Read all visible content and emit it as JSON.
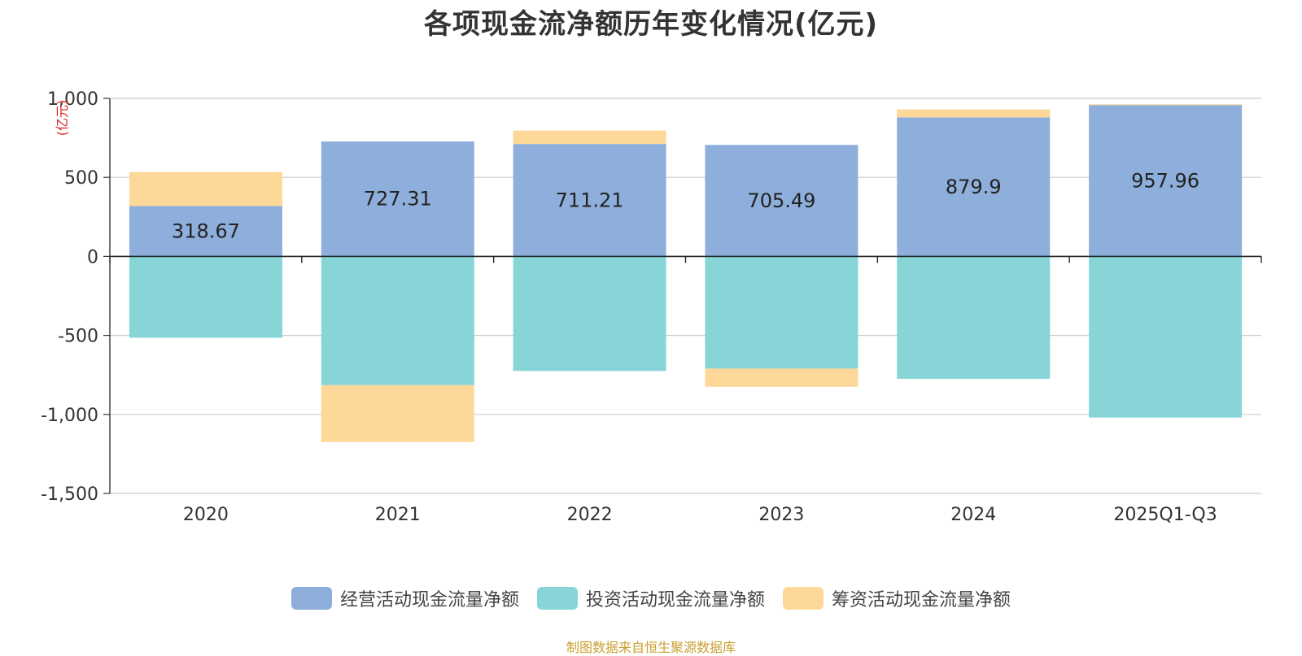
{
  "chart_data": {
    "type": "bar",
    "stacked": true,
    "title": "各项现金流净额历年变化情况(亿元)",
    "ylabel": "(亿元)",
    "categories": [
      "2020",
      "2021",
      "2022",
      "2023",
      "2024",
      "2025Q1-Q3"
    ],
    "ylim": [
      -1500,
      1000
    ],
    "yticks": [
      1000,
      500,
      0,
      -500,
      -1000,
      -1500
    ],
    "ytick_labels": [
      "1,000",
      "500",
      "0",
      "-500",
      "-1,000",
      "-1,500"
    ],
    "grid": true,
    "legend_position": "bottom",
    "series": [
      {
        "name": "经营活动现金流量净额",
        "color": "#8eaedb",
        "values": [
          318.67,
          727.31,
          711.21,
          705.49,
          879.9,
          957.96
        ],
        "labels": [
          "318.67",
          "727.31",
          "711.21",
          "705.49",
          "879.9",
          "957.96"
        ]
      },
      {
        "name": "投资活动现金流量净额",
        "color": "#88d5d8",
        "values": [
          -515,
          -815,
          -725,
          -710,
          -775,
          -1020
        ]
      },
      {
        "name": "筹资活动现金流量净额",
        "color": "#fed898",
        "values": [
          215,
          -360,
          85,
          -115,
          50,
          5
        ]
      }
    ]
  },
  "source_note": "制图数据来自恒生聚源数据库"
}
